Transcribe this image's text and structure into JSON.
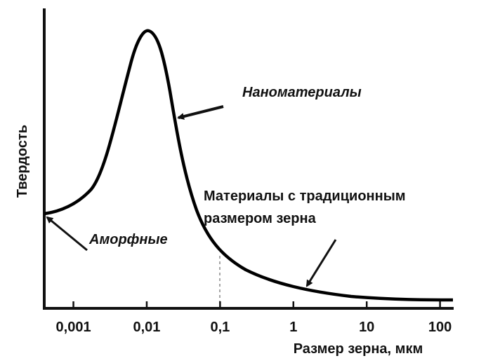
{
  "chart_data": {
    "type": "line",
    "y_label": "Твердость",
    "x_label": "Размер зерна, мкм",
    "x_scale": "log",
    "xlim": [
      0.0004,
      150
    ],
    "xticks": [
      {
        "value": 0.001,
        "label": "0,001"
      },
      {
        "value": 0.01,
        "label": "0,01"
      },
      {
        "value": 0.1,
        "label": "0,1"
      },
      1,
      10,
      100
    ],
    "annotations": [
      "Наноматериалы",
      "Материалы с традиционным",
      "размером зерна",
      "Аморфные"
    ],
    "color": "#000000"
  }
}
